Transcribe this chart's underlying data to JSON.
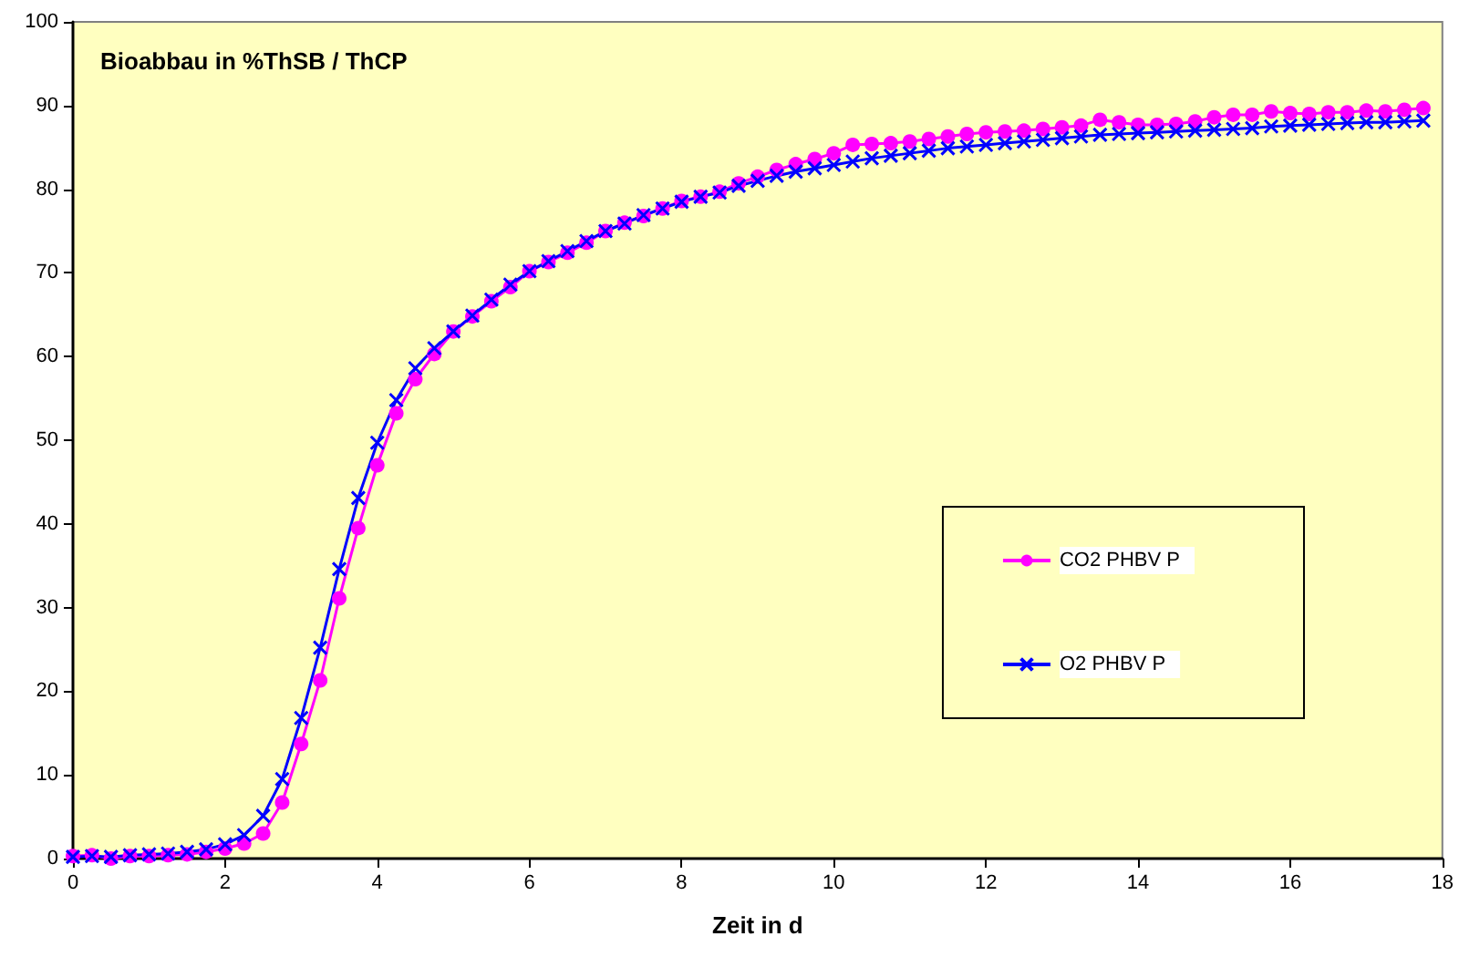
{
  "chart_data": {
    "type": "line",
    "title": "Bioabbau in %ThSB / ThCP",
    "xlabel": "Zeit in d",
    "x": [
      0,
      0.25,
      0.5,
      0.75,
      1,
      1.25,
      1.5,
      1.75,
      2,
      2.25,
      2.5,
      2.75,
      3,
      3.25,
      3.5,
      3.75,
      4,
      4.25,
      4.5,
      4.75,
      5,
      5.25,
      5.5,
      5.75,
      6,
      6.25,
      6.5,
      6.75,
      7,
      7.25,
      7.5,
      7.75,
      8,
      8.25,
      8.5,
      8.75,
      9,
      9.25,
      9.5,
      9.75,
      10,
      10.25,
      10.5,
      10.75,
      11,
      11.25,
      11.5,
      11.75,
      12,
      12.25,
      12.5,
      12.75,
      13,
      13.25,
      13.5,
      13.75,
      14,
      14.25,
      14.5,
      14.75,
      15,
      15.25,
      15.5,
      15.75,
      16,
      16.25,
      16.5,
      16.75,
      17,
      17.25,
      17.5,
      17.75
    ],
    "series": [
      {
        "name": "CO2 PHBV P",
        "color": "#ff00ff",
        "marker": "circle",
        "values": [
          0.3,
          0.4,
          0,
          0.3,
          0.3,
          0.4,
          0.5,
          0.8,
          1.2,
          1.8,
          3.0,
          6.7,
          13.7,
          21.3,
          31.1,
          39.5,
          47.0,
          53.2,
          57.3,
          60.3,
          63.0,
          64.8,
          66.6,
          68.3,
          70.2,
          71.3,
          72.4,
          73.6,
          75.0,
          76.0,
          76.8,
          77.7,
          78.6,
          79.1,
          79.7,
          80.7,
          81.5,
          82.3,
          83.0,
          83.6,
          84.3,
          85.3,
          85.4,
          85.5,
          85.7,
          86.0,
          86.3,
          86.6,
          86.8,
          86.9,
          87.0,
          87.2,
          87.4,
          87.6,
          88.3,
          88.0,
          87.7,
          87.7,
          87.8,
          88.1,
          88.6,
          88.9,
          88.9,
          89.3,
          89.1,
          89.0,
          89.2,
          89.2,
          89.4,
          89.3,
          89.5,
          89.7
        ]
      },
      {
        "name": "O2 PHBV P",
        "color": "#0000ff",
        "marker": "cross",
        "values": [
          0.2,
          0.3,
          0.2,
          0.4,
          0.5,
          0.6,
          0.8,
          1.1,
          1.7,
          2.8,
          5.1,
          9.5,
          16.8,
          25.2,
          34.6,
          43.1,
          49.7,
          54.8,
          58.6,
          61.0,
          63.0,
          64.9,
          66.8,
          68.6,
          70.2,
          71.4,
          72.6,
          73.8,
          75.0,
          75.9,
          76.9,
          77.7,
          78.5,
          79.1,
          79.6,
          80.4,
          81.0,
          81.6,
          82.1,
          82.5,
          82.9,
          83.3,
          83.7,
          84.0,
          84.3,
          84.6,
          84.9,
          85.1,
          85.3,
          85.5,
          85.7,
          85.9,
          86.1,
          86.3,
          86.5,
          86.6,
          86.7,
          86.8,
          86.9,
          87.0,
          87.1,
          87.2,
          87.3,
          87.5,
          87.6,
          87.7,
          87.8,
          87.9,
          88.0,
          88.0,
          88.1,
          88.2
        ]
      }
    ],
    "xlim": [
      0,
      18
    ],
    "xticks": [
      0,
      2,
      4,
      6,
      8,
      10,
      12,
      14,
      16,
      18
    ],
    "ylim": [
      0,
      100
    ],
    "yticks": [
      0,
      10,
      20,
      30,
      40,
      50,
      60,
      70,
      80,
      90,
      100
    ],
    "grid": false,
    "legend": "right",
    "line_style": "solid"
  }
}
